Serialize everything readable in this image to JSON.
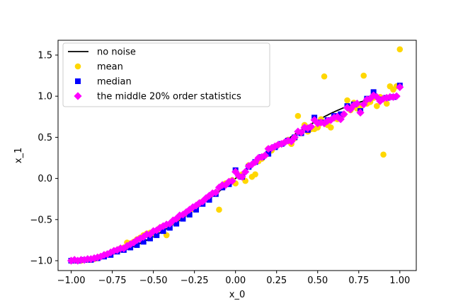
{
  "chart_data": {
    "type": "scatter",
    "xlabel": "x_0",
    "ylabel": "x_1",
    "xlim": [
      -1.08,
      1.1
    ],
    "ylim": [
      -1.12,
      1.68
    ],
    "xticks": [
      -1.0,
      -0.75,
      -0.5,
      -0.25,
      0.0,
      0.25,
      0.5,
      0.75,
      1.0
    ],
    "xtick_labels": [
      "−1.00",
      "−0.75",
      "−0.50",
      "−0.25",
      "0.00",
      "0.25",
      "0.50",
      "0.75",
      "1.00"
    ],
    "yticks": [
      -1.0,
      -0.5,
      0.0,
      0.5,
      1.0,
      1.5
    ],
    "ytick_labels": [
      "−1.0",
      "−0.5",
      "0.0",
      "0.5",
      "1.0",
      "1.5"
    ],
    "grid": false,
    "legend_position": "top-left",
    "series": [
      {
        "name": "no noise",
        "kind": "line",
        "color": "#000000",
        "function": "sin(pi/2 * x)"
      },
      {
        "name": "mean",
        "kind": "scatter",
        "marker": "circle",
        "color": "#ffd700",
        "x": [
          -1.0,
          -0.98,
          -0.96,
          -0.94,
          -0.92,
          -0.9,
          -0.88,
          -0.86,
          -0.84,
          -0.82,
          -0.8,
          -0.78,
          -0.76,
          -0.74,
          -0.72,
          -0.7,
          -0.68,
          -0.66,
          -0.64,
          -0.62,
          -0.6,
          -0.58,
          -0.56,
          -0.54,
          -0.52,
          -0.5,
          -0.48,
          -0.46,
          -0.44,
          -0.42,
          -0.4,
          -0.38,
          -0.36,
          -0.34,
          -0.32,
          -0.3,
          -0.28,
          -0.26,
          -0.24,
          -0.22,
          -0.2,
          -0.18,
          -0.16,
          -0.14,
          -0.12,
          -0.1,
          -0.08,
          -0.06,
          -0.04,
          -0.02,
          0.0,
          0.02,
          0.04,
          0.06,
          0.08,
          0.1,
          0.12,
          0.14,
          0.16,
          0.18,
          0.2,
          0.22,
          0.24,
          0.26,
          0.28,
          0.3,
          0.32,
          0.34,
          0.36,
          0.38,
          0.4,
          0.42,
          0.44,
          0.46,
          0.48,
          0.5,
          0.52,
          0.54,
          0.56,
          0.58,
          0.6,
          0.62,
          0.64,
          0.66,
          0.68,
          0.7,
          0.72,
          0.74,
          0.76,
          0.78,
          0.8,
          0.82,
          0.84,
          0.86,
          0.88,
          0.9,
          0.92,
          0.94,
          0.96,
          0.98,
          1.0
        ],
        "y": [
          -1.0,
          -1.0,
          -1.0,
          -1.0,
          -0.99,
          -0.99,
          -0.99,
          -0.98,
          -0.97,
          -0.95,
          -0.94,
          -0.92,
          -0.91,
          -0.89,
          -0.87,
          -0.85,
          -0.84,
          -0.78,
          -0.79,
          -0.77,
          -0.74,
          -0.72,
          -0.69,
          -0.67,
          -0.66,
          -0.67,
          -0.64,
          -0.6,
          -0.58,
          -0.69,
          -0.56,
          -0.53,
          -0.53,
          -0.47,
          -0.46,
          -0.43,
          -0.4,
          -0.37,
          -0.34,
          -0.3,
          -0.28,
          -0.25,
          -0.22,
          -0.19,
          -0.17,
          -0.38,
          -0.1,
          -0.06,
          -0.04,
          -0.02,
          -0.06,
          0.03,
          0.05,
          -0.03,
          0.16,
          0.02,
          0.05,
          0.21,
          0.24,
          0.28,
          0.36,
          0.34,
          0.38,
          0.41,
          0.42,
          0.44,
          0.47,
          0.42,
          0.49,
          0.76,
          0.55,
          0.65,
          0.57,
          0.6,
          0.6,
          0.62,
          0.72,
          1.24,
          0.65,
          0.62,
          0.73,
          0.72,
          0.76,
          0.78,
          0.95,
          0.83,
          0.92,
          0.85,
          0.88,
          1.25,
          0.91,
          0.93,
          0.98,
          0.88,
          0.99,
          0.29,
          0.91,
          1.12,
          1.08,
          1.12,
          1.57
        ]
      },
      {
        "name": "median",
        "kind": "scatter",
        "marker": "square",
        "color": "#0000ff",
        "x": [
          -1.0,
          -0.96,
          -0.92,
          -0.88,
          -0.84,
          -0.8,
          -0.76,
          -0.72,
          -0.68,
          -0.64,
          -0.6,
          -0.56,
          -0.52,
          -0.48,
          -0.44,
          -0.4,
          -0.36,
          -0.32,
          -0.28,
          -0.24,
          -0.2,
          -0.16,
          -0.12,
          -0.08,
          -0.04,
          0.0,
          0.04,
          0.08,
          0.12,
          0.16,
          0.2,
          0.24,
          0.28,
          0.32,
          0.36,
          0.4,
          0.44,
          0.48,
          0.52,
          0.56,
          0.6,
          0.64,
          0.68,
          0.72,
          0.76,
          0.8,
          0.84,
          0.88,
          0.92,
          0.96,
          1.0
        ],
        "y": [
          -1.0,
          -1.0,
          -0.99,
          -0.99,
          -0.97,
          -0.95,
          -0.93,
          -0.89,
          -0.87,
          -0.84,
          -0.81,
          -0.77,
          -0.73,
          -0.69,
          -0.64,
          -0.6,
          -0.55,
          -0.49,
          -0.44,
          -0.38,
          -0.31,
          -0.26,
          -0.19,
          -0.11,
          -0.07,
          0.1,
          0.02,
          0.14,
          0.2,
          0.26,
          0.3,
          0.38,
          0.42,
          0.46,
          0.5,
          0.55,
          0.59,
          0.74,
          0.68,
          0.71,
          0.76,
          0.78,
          0.88,
          0.9,
          0.82,
          0.97,
          1.05,
          0.96,
          0.98,
          0.99,
          1.13
        ]
      },
      {
        "name": "the middle 20% order statistics",
        "kind": "scatter",
        "marker": "diamond",
        "color": "#ff00ff",
        "x": [
          -1.0,
          -0.98,
          -0.96,
          -0.94,
          -0.92,
          -0.9,
          -0.88,
          -0.86,
          -0.84,
          -0.82,
          -0.8,
          -0.78,
          -0.76,
          -0.74,
          -0.72,
          -0.7,
          -0.68,
          -0.66,
          -0.64,
          -0.62,
          -0.6,
          -0.58,
          -0.56,
          -0.54,
          -0.52,
          -0.5,
          -0.48,
          -0.46,
          -0.44,
          -0.42,
          -0.4,
          -0.38,
          -0.36,
          -0.34,
          -0.32,
          -0.3,
          -0.28,
          -0.26,
          -0.24,
          -0.22,
          -0.2,
          -0.18,
          -0.16,
          -0.14,
          -0.12,
          -0.1,
          -0.08,
          -0.06,
          -0.04,
          -0.02,
          0.0,
          0.02,
          0.04,
          0.06,
          0.08,
          0.1,
          0.12,
          0.14,
          0.16,
          0.18,
          0.2,
          0.22,
          0.24,
          0.26,
          0.28,
          0.3,
          0.32,
          0.34,
          0.36,
          0.38,
          0.4,
          0.42,
          0.44,
          0.46,
          0.48,
          0.5,
          0.52,
          0.54,
          0.56,
          0.58,
          0.6,
          0.62,
          0.64,
          0.66,
          0.68,
          0.7,
          0.72,
          0.74,
          0.76,
          0.78,
          0.8,
          0.82,
          0.84,
          0.86,
          0.88,
          0.9,
          0.92,
          0.94,
          0.96,
          0.98,
          1.0
        ],
        "y": [
          -1.0,
          -0.99,
          -1.0,
          -0.99,
          -0.99,
          -0.98,
          -0.98,
          -0.97,
          -0.96,
          -0.95,
          -0.93,
          -0.92,
          -0.9,
          -0.88,
          -0.87,
          -0.85,
          -0.85,
          -0.82,
          -0.8,
          -0.78,
          -0.75,
          -0.73,
          -0.71,
          -0.68,
          -0.68,
          -0.64,
          -0.63,
          -0.6,
          -0.58,
          -0.56,
          -0.55,
          -0.51,
          -0.49,
          -0.45,
          -0.44,
          -0.41,
          -0.38,
          -0.35,
          -0.33,
          -0.3,
          -0.28,
          -0.24,
          -0.21,
          -0.18,
          -0.17,
          -0.11,
          -0.08,
          -0.08,
          -0.04,
          -0.03,
          0.08,
          0.03,
          0.02,
          0.08,
          0.15,
          0.17,
          0.2,
          0.25,
          0.26,
          0.28,
          0.36,
          0.37,
          0.39,
          0.41,
          0.42,
          0.44,
          0.46,
          0.45,
          0.5,
          0.57,
          0.56,
          0.62,
          0.61,
          0.63,
          0.71,
          0.67,
          0.68,
          0.67,
          0.7,
          0.71,
          0.74,
          0.75,
          0.72,
          0.78,
          0.86,
          0.84,
          0.89,
          0.91,
          0.8,
          0.9,
          0.96,
          0.97,
          1.01,
          0.99,
          0.94,
          0.97,
          0.98,
          0.99,
          0.99,
          1.0,
          1.11
        ]
      }
    ]
  }
}
